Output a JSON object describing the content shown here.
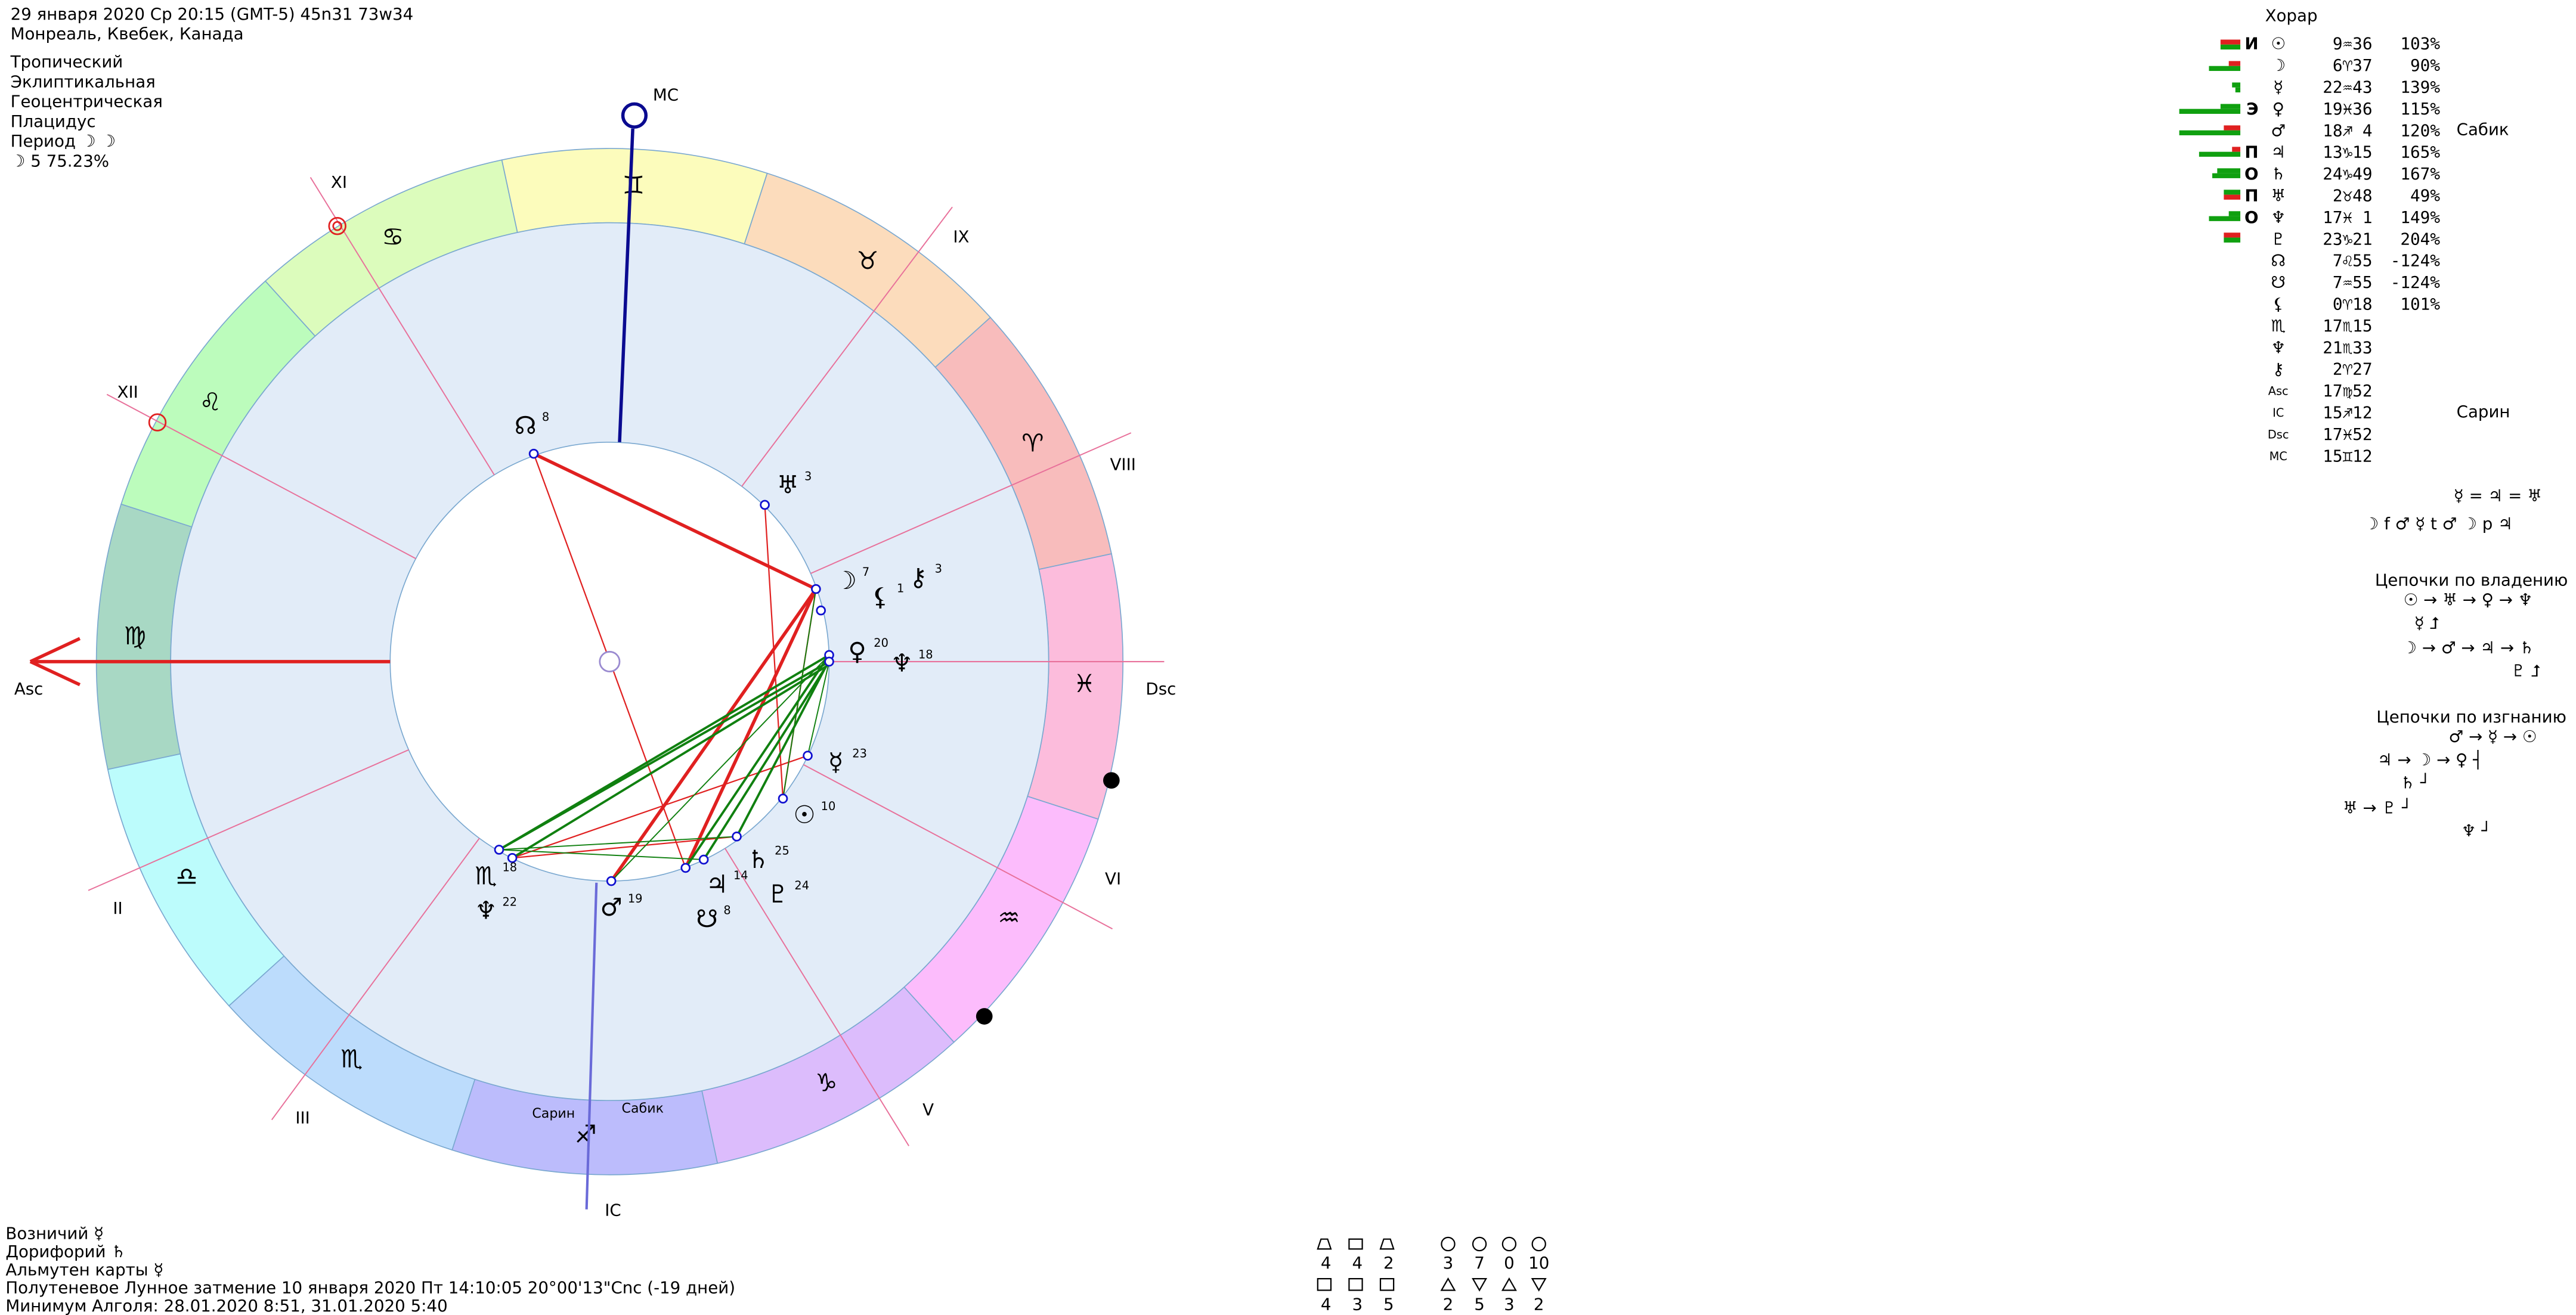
{
  "header": {
    "lines": [
      "29 января 2020  Ср  20:15 (GMT-5) 45n31  73w34",
      "Монреаль, Квебек, Канада"
    ],
    "settings": [
      "Тропический",
      "Эклиптикальная",
      "Геоцентрическая",
      "Плацидус"
    ],
    "period": "Период ☽ ☽",
    "period_moon": "☽  5 75.23%"
  },
  "wheel": {
    "signs": [
      "♈",
      "♉",
      "♊",
      "♋",
      "♌",
      "♍",
      "♎",
      "♏",
      "♐",
      "♑",
      "♒",
      "♓"
    ],
    "houses": [
      "XI",
      "XII",
      "IX",
      "VIII",
      "VI",
      "V",
      "III",
      "II"
    ],
    "angles": [
      "MC",
      "IC",
      "Asc",
      "Dsc"
    ],
    "stars": [
      "Сарин",
      "Сабик"
    ],
    "planets": [
      {
        "glyph": "☊",
        "degree": "8",
        "color": "#e02020"
      },
      {
        "glyph": "♅",
        "degree": "3",
        "color": "#000000"
      },
      {
        "glyph": "☽",
        "degree": "7",
        "color": "#e02020"
      },
      {
        "glyph": "⚷",
        "degree": "3",
        "color": "#1010d0"
      },
      {
        "glyph": "⚸",
        "degree": "1",
        "color": "#1010d0"
      },
      {
        "glyph": "♀",
        "degree": "20",
        "color": "#109010"
      },
      {
        "glyph": "♆",
        "degree": "18",
        "color": "#109010"
      },
      {
        "glyph": "☿",
        "degree": "23",
        "color": "#000000"
      },
      {
        "glyph": "☉",
        "degree": "10",
        "color": "#109010"
      },
      {
        "glyph": "♄",
        "degree": "25",
        "color": "#109010"
      },
      {
        "glyph": "♃",
        "degree": "14",
        "color": "#109010"
      },
      {
        "glyph": "♇",
        "degree": "24",
        "color": "#109010"
      },
      {
        "glyph": "☋",
        "degree": "8",
        "color": "#e02020"
      },
      {
        "glyph": "♂",
        "degree": "19",
        "color": "#000000"
      },
      {
        "glyph": "♏",
        "degree": "18",
        "color": "#109010"
      },
      {
        "glyph": "♆",
        "degree": "22",
        "color": "#109010"
      }
    ]
  },
  "table": {
    "title": "Хорар",
    "rows": [
      {
        "marker": "И",
        "glyph": "☉",
        "pos": "9♒36",
        "pct": "103%"
      },
      {
        "glyph": "☽",
        "pos": "6♈37",
        "pct": "90%"
      },
      {
        "glyph": "☿",
        "pos": "22♒43",
        "pct": "139%"
      },
      {
        "marker": "Э",
        "glyph": "♀",
        "pos": "19♓36",
        "pct": "115%"
      },
      {
        "glyph": "♂",
        "pos": "18♐ 4",
        "pct": "120%"
      },
      {
        "marker": "П",
        "glyph": "♃",
        "pos": "13♑15",
        "pct": "165%"
      },
      {
        "marker": "О",
        "glyph": "♄",
        "pos": "24♑49",
        "pct": "167%"
      },
      {
        "marker": "П",
        "glyph": "♅",
        "pos": "2♉48",
        "pct": "49%"
      },
      {
        "marker": "О",
        "glyph": "♆",
        "pos": "17♓ 1",
        "pct": "149%"
      },
      {
        "glyph": "♇",
        "pos": "23♑21",
        "pct": "204%"
      },
      {
        "glyph": "☊",
        "pos": "7♌55",
        "pct": "-124%"
      },
      {
        "glyph": "☋",
        "pos": "7♒55",
        "pct": "-124%"
      },
      {
        "glyph": "⚸",
        "pos": "0♈18",
        "pct": "101%"
      },
      {
        "glyph": "♏",
        "pos": "17♏15"
      },
      {
        "glyph": "♆",
        "pos": "21♏33"
      },
      {
        "glyph": "⚷",
        "pos": "2♈27"
      },
      {
        "glyph": "Asc",
        "pos": "17♍52"
      },
      {
        "glyph": "IC",
        "pos": "15♐12"
      },
      {
        "glyph": "Dsc",
        "pos": "17♓52"
      },
      {
        "glyph": "MC",
        "pos": "15♊12"
      }
    ],
    "notes": [
      "Сабик",
      "Сарин"
    ]
  },
  "relations": [
    "☿ = ♃ = ♅",
    "☽ f ♂ ☿ t ♂ ☽ p ♃"
  ],
  "chains_ownership": {
    "title": "Цепочки по владению",
    "lines": [
      "☉ → ♅ → ♀ → ♆",
      "☿ ⮥",
      "☽ → ♂ → ♃ → ♄",
      "♇ ⮥"
    ]
  },
  "chains_exile": {
    "title": "Цепочки по изгнанию",
    "lines": [
      "♂ → ☿ → ☉",
      "♃ → ☽ → ♀ ┤",
      "♄ ┘",
      "♅ → ♇ ┘",
      "♆ ┘"
    ]
  },
  "footer": [
    "Возничий ☿",
    "Дорифорий ♄",
    "Альмутен карты ☿",
    "Полутеневое Лунное затмение 10 января 2020 Пт 14:10:05 20°00'13\"Cnc (-19 дней)",
    "Минимум Алголя: 28.01.2020  8:51, 31.01.2020  5:40"
  ],
  "elements": {
    "row1": [
      "4",
      "4",
      "2",
      "3",
      "7",
      "0",
      "10"
    ],
    "row2": [
      "4",
      "3",
      "5",
      "2",
      "5",
      "3",
      "2"
    ]
  }
}
